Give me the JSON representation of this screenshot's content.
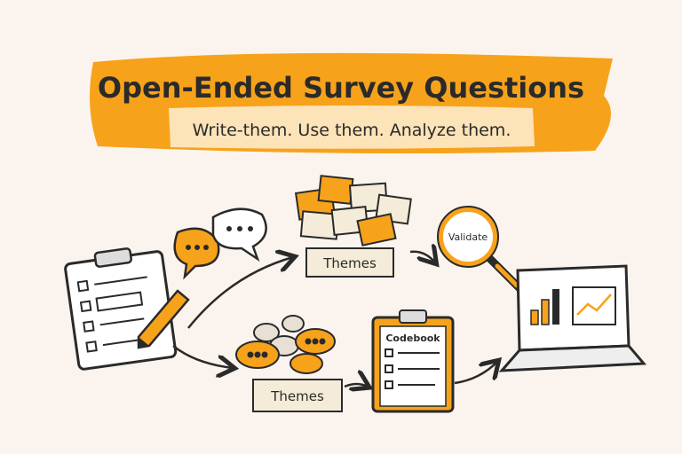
{
  "header": {
    "title": "Open-Ended Survey Questions",
    "subtitle": "Write-them. Use them. Analyze them."
  },
  "labels": {
    "themes_top": "Themes",
    "validate": "Validate",
    "themes_bottom": "Themes",
    "codebook": "Codebook"
  },
  "colors": {
    "background": "#fbf4ee",
    "accent_orange": "#f7a21b",
    "light_orange": "#fde3b8",
    "ink": "#2a2a2a"
  }
}
